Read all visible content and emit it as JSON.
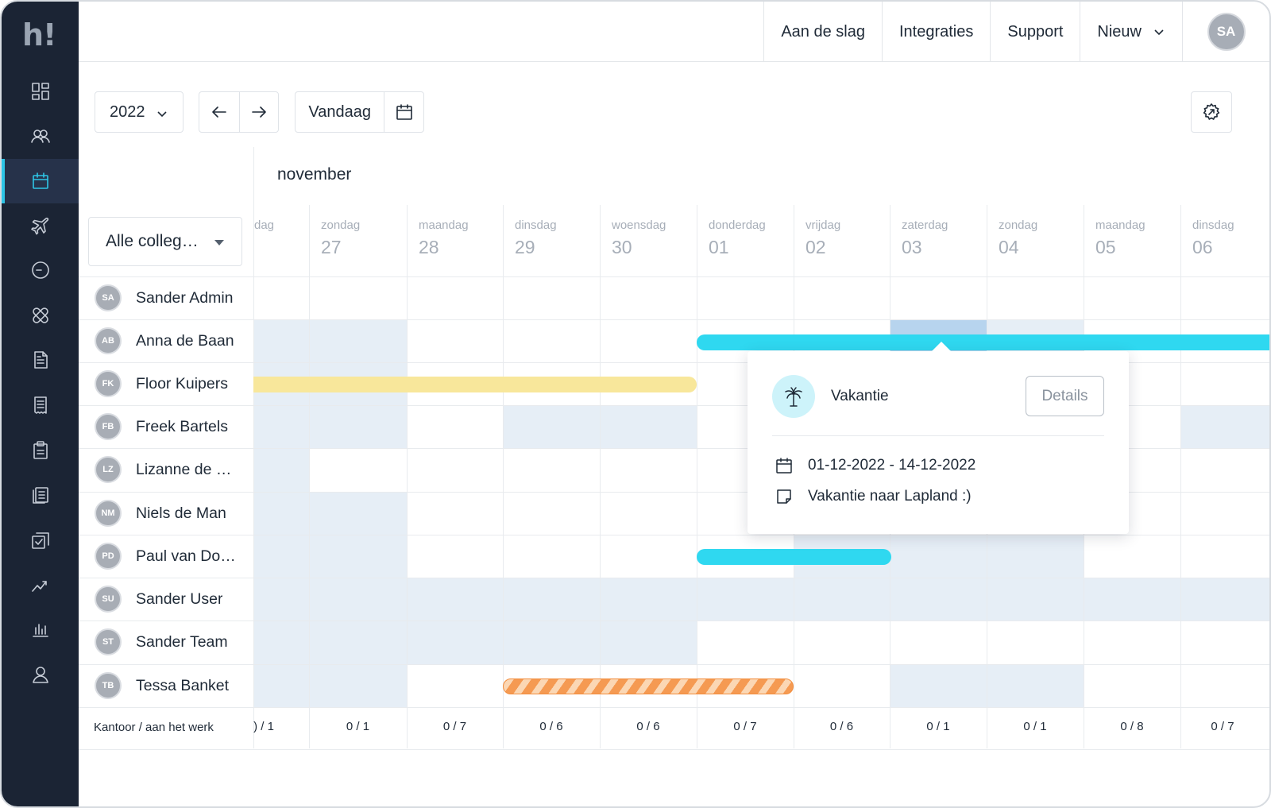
{
  "app": {
    "logo_text": "h!"
  },
  "sidebar": {
    "items": [
      {
        "icon": "dashboard-icon"
      },
      {
        "icon": "team-icon"
      },
      {
        "icon": "calendar-icon",
        "active": true
      },
      {
        "icon": "plane-icon"
      },
      {
        "icon": "clock-icon"
      },
      {
        "icon": "bandage-icon"
      },
      {
        "icon": "document-icon"
      },
      {
        "icon": "receipt-icon"
      },
      {
        "icon": "clipboard-icon"
      },
      {
        "icon": "files-icon"
      },
      {
        "icon": "checklist-icon"
      },
      {
        "icon": "growth-icon"
      },
      {
        "icon": "bar-chart-icon"
      },
      {
        "icon": "user-icon"
      }
    ]
  },
  "topbar": {
    "links": [
      "Aan de slag",
      "Integraties",
      "Support"
    ],
    "new_label": "Nieuw",
    "avatar_initials": "SA"
  },
  "toolbar": {
    "year": "2022",
    "today_label": "Vandaag"
  },
  "calendar": {
    "month": "november",
    "filter_label": "Alle colleg…",
    "partial_day_label": "dag",
    "days": [
      {
        "weekday": "zondag",
        "date": "27"
      },
      {
        "weekday": "maandag",
        "date": "28"
      },
      {
        "weekday": "dinsdag",
        "date": "29"
      },
      {
        "weekday": "woensdag",
        "date": "30"
      },
      {
        "weekday": "donderdag",
        "date": "01"
      },
      {
        "weekday": "vrijdag",
        "date": "02"
      },
      {
        "weekday": "zaterdag",
        "date": "03"
      },
      {
        "weekday": "zondag",
        "date": "04"
      },
      {
        "weekday": "maandag",
        "date": "05"
      },
      {
        "weekday": "dinsdag",
        "date": "06"
      }
    ],
    "people": [
      {
        "initials": "SA",
        "name": "Sander Admin"
      },
      {
        "initials": "AB",
        "name": "Anna de Baan"
      },
      {
        "initials": "FK",
        "name": "Floor Kuipers"
      },
      {
        "initials": "FB",
        "name": "Freek Bartels"
      },
      {
        "initials": "LZ",
        "name": "Lizanne de …"
      },
      {
        "initials": "NM",
        "name": "Niels de Man"
      },
      {
        "initials": "PD",
        "name": "Paul van Do…"
      },
      {
        "initials": "SU",
        "name": "Sander User"
      },
      {
        "initials": "ST",
        "name": "Sander Team"
      },
      {
        "initials": "TB",
        "name": "Tessa Banket"
      }
    ],
    "footer_label": "Kantoor / aan het werk",
    "footer_partial": ") / 1",
    "footer_values": [
      "0 / 1",
      "0 / 7",
      "0 / 6",
      "0 / 6",
      "0 / 7",
      "0 / 6",
      "0 / 1",
      "0 / 1",
      "0 / 8",
      "0 / 7"
    ]
  },
  "popover": {
    "title": "Vakantie",
    "details_label": "Details",
    "date_range": "01-12-2022 - 14-12-2022",
    "note": "Vakantie naar Lapland :)"
  },
  "colors": {
    "sidebar_bg": "#1b2434",
    "accent": "#2ec5e6",
    "leave_bar": "#2fd8f0",
    "pending_bar": "#f8e79b",
    "sick_bar": "#f59a52",
    "nonworking_cell": "#e6eef6"
  }
}
